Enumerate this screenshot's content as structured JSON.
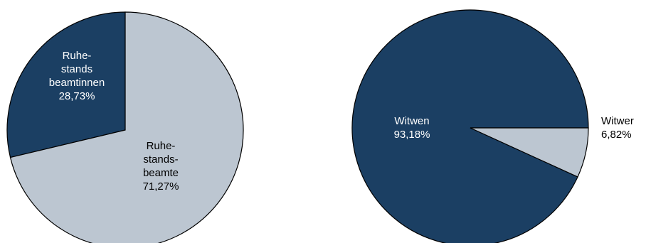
{
  "chart_data": [
    {
      "type": "pie",
      "title": "",
      "slices": [
        {
          "label_lines": [
            "Ruhe-",
            "stands",
            "beamtinnen"
          ],
          "value": 28.73,
          "value_label": "28,73%",
          "color": "#1b3f63",
          "text_color": "#ffffff"
        },
        {
          "label_lines": [
            "Ruhe-",
            "stands-",
            "beamte"
          ],
          "value": 71.27,
          "value_label": "71,27%",
          "color": "#bcc6d1",
          "text_color": "#000000"
        }
      ],
      "start": "top",
      "direction": "counterclockwise",
      "stroke_color": "#000000"
    },
    {
      "type": "pie",
      "title": "",
      "slices": [
        {
          "label_lines": [
            "Witwen"
          ],
          "value": 93.18,
          "value_label": "93,18%",
          "color": "#1b3f63",
          "text_color": "#ffffff"
        },
        {
          "label_lines": [
            "Witwer"
          ],
          "value": 6.82,
          "value_label": "6,82%",
          "color": "#bcc6d1",
          "text_color": "#000000"
        }
      ],
      "start": "right",
      "direction": "counterclockwise",
      "stroke_color": "#000000"
    }
  ]
}
